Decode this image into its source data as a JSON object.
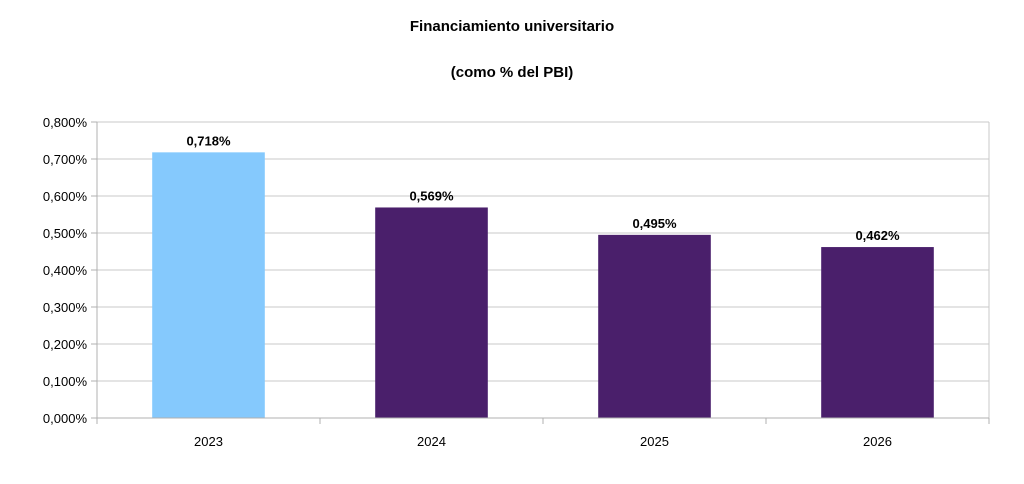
{
  "chart_data": {
    "type": "bar",
    "title": "Financiamiento universitario",
    "subtitle": "(como % del PBI)",
    "xlabel": "",
    "ylabel": "",
    "categories": [
      "2023",
      "2024",
      "2025",
      "2026"
    ],
    "values": [
      0.718,
      0.569,
      0.495,
      0.462
    ],
    "data_labels": [
      "0,718%",
      "0,569%",
      "0,495%",
      "0,462%"
    ],
    "bar_colors": [
      "#85c9fd",
      "#4a1f6b",
      "#4a1f6b",
      "#4a1f6b"
    ],
    "ylim": [
      0,
      0.8
    ],
    "yticks": [
      0,
      0.1,
      0.2,
      0.3,
      0.4,
      0.5,
      0.6,
      0.7,
      0.8
    ],
    "ytick_labels": [
      "0,000%",
      "0,100%",
      "0,200%",
      "0,300%",
      "0,400%",
      "0,500%",
      "0,600%",
      "0,700%",
      "0,800%"
    ],
    "grid": true,
    "legend": "none"
  }
}
